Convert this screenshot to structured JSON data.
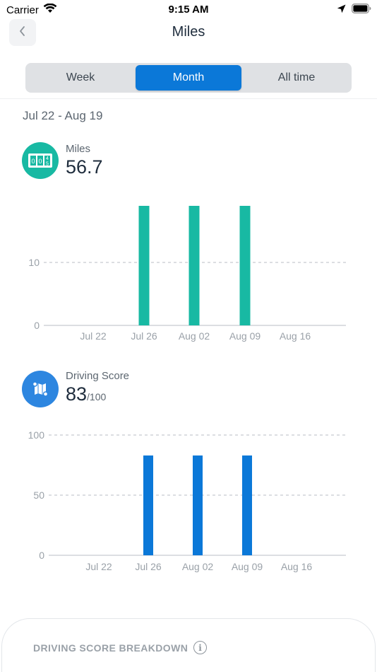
{
  "status_bar": {
    "carrier": "Carrier",
    "time": "9:15 AM",
    "icons": [
      "wifi-icon",
      "location-arrow-icon",
      "battery-icon"
    ]
  },
  "nav": {
    "title": "Miles",
    "back_icon": "chevron-left-icon"
  },
  "tabs": [
    {
      "label": "Week",
      "active": false
    },
    {
      "label": "Month",
      "active": true
    },
    {
      "label": "All time",
      "active": false
    }
  ],
  "date_range": "Jul 22 - Aug 19",
  "miles": {
    "label": "Miles",
    "value": "56.7",
    "icon": "odometer-icon",
    "color": "#18b9a3"
  },
  "driving_score": {
    "label": "Driving Score",
    "value": "83",
    "suffix": "/100",
    "icon": "map-route-icon",
    "color": "#2d86e0"
  },
  "chart_data": [
    {
      "type": "bar",
      "categories": [
        "Jul 22",
        "Jul 26",
        "Aug 02",
        "Aug 09",
        "Aug 16"
      ],
      "x_positions": [
        0,
        1,
        2,
        3,
        4
      ],
      "yticks": [
        0,
        10
      ],
      "ylim": [
        0,
        19
      ],
      "grid": "dashed horizontal at 10",
      "bars": [
        {
          "x": "Jul 26",
          "value": 19
        },
        {
          "x": "Aug 02",
          "value": 19
        },
        {
          "x": "Aug 09",
          "value": 19
        }
      ],
      "color": "#18b9a3"
    },
    {
      "type": "bar",
      "categories": [
        "Jul 22",
        "Jul 26",
        "Aug 02",
        "Aug 09",
        "Aug 16"
      ],
      "yticks": [
        0,
        50,
        100
      ],
      "ylim": [
        0,
        100
      ],
      "grid": "dashed horizontal at 50 and 100",
      "bars": [
        {
          "x": "Jul 26",
          "value": 83
        },
        {
          "x": "Aug 02",
          "value": 83
        },
        {
          "x": "Aug 09",
          "value": 83
        }
      ],
      "color": "#0b78d8"
    }
  ],
  "breakdown": {
    "title": "DRIVING SCORE BREAKDOWN",
    "info_icon": "info-icon"
  }
}
